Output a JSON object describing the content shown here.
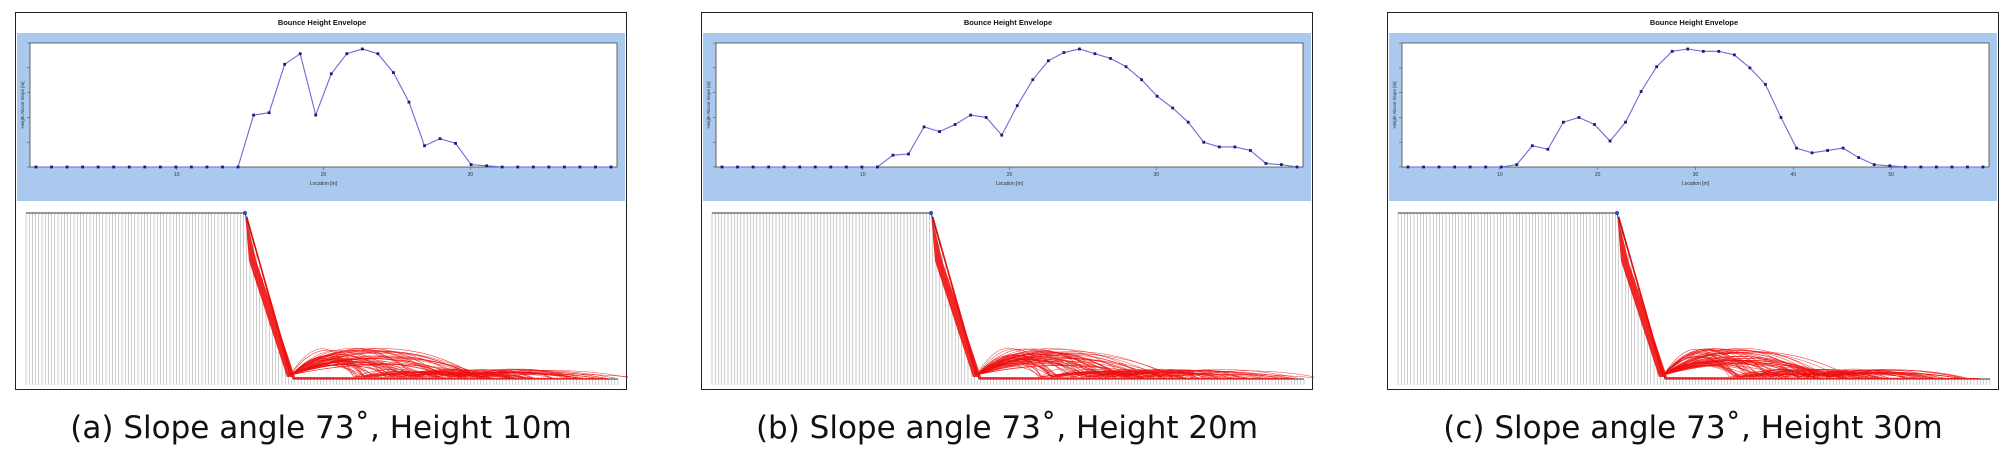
{
  "envelope_title": "Bounce Height Envelope",
  "xlabel": "Location [m]",
  "ylabel": "Height Above Slope [m]",
  "colors": {
    "plot_band": "#a9c9ef",
    "envelope_line": "#6a6ad6",
    "envelope_point": "#1a1a80",
    "trajectory": "#ee1111",
    "slope": "#333333"
  },
  "panels": [
    {
      "caption": "(a) Slope angle 73˚, Height 10m",
      "x_ticks": [
        "10",
        "20",
        "30"
      ],
      "chart_data": {
        "type": "line",
        "title": "Bounce Height Envelope",
        "x": [
          0,
          1,
          2,
          3,
          4,
          5,
          6,
          7,
          8,
          9,
          10,
          11,
          12,
          13,
          14,
          15,
          16,
          17,
          18,
          19,
          20,
          21,
          22,
          23,
          24,
          25,
          26,
          27,
          28,
          29,
          30,
          31,
          32,
          33,
          34,
          35,
          36,
          37
        ],
        "values": [
          0,
          0,
          0,
          0,
          0,
          0,
          0,
          0,
          0,
          0,
          0,
          0,
          0,
          0,
          0.44,
          0.46,
          0.87,
          0.96,
          0.44,
          0.79,
          0.96,
          1.0,
          0.96,
          0.8,
          0.55,
          0.18,
          0.24,
          0.2,
          0.02,
          0.01,
          0,
          0,
          0,
          0,
          0,
          0,
          0,
          0
        ],
        "ylim": [
          0,
          1.05
        ]
      }
    },
    {
      "caption": "(b) Slope angle 73˚, Height 20m",
      "x_ticks": [
        "10",
        "20",
        "30"
      ],
      "chart_data": {
        "type": "line",
        "title": "Bounce Height Envelope",
        "x": [
          0,
          1,
          2,
          3,
          4,
          5,
          6,
          7,
          8,
          9,
          10,
          11,
          12,
          13,
          14,
          15,
          16,
          17,
          18,
          19,
          20,
          21,
          22,
          23,
          24,
          25,
          26,
          27,
          28,
          29,
          30,
          31,
          32,
          33,
          34,
          35,
          36,
          37
        ],
        "values": [
          0,
          0,
          0,
          0,
          0,
          0,
          0,
          0,
          0,
          0,
          0,
          0.1,
          0.11,
          0.34,
          0.3,
          0.36,
          0.44,
          0.42,
          0.27,
          0.52,
          0.74,
          0.9,
          0.97,
          1.0,
          0.96,
          0.92,
          0.85,
          0.74,
          0.6,
          0.5,
          0.38,
          0.21,
          0.17,
          0.17,
          0.14,
          0.03,
          0.02,
          0
        ]
      }
    },
    {
      "caption": "(c) Slope angle 73˚, Height 30m",
      "x_ticks": [
        "10",
        "20",
        "30",
        "40",
        "50"
      ],
      "chart_data": {
        "type": "line",
        "title": "Bounce Height Envelope",
        "x": [
          0,
          1,
          2,
          3,
          4,
          5,
          6,
          7,
          8,
          9,
          10,
          11,
          12,
          13,
          14,
          15,
          16,
          17,
          18,
          19,
          20,
          21,
          22,
          23,
          24,
          25,
          26,
          27,
          28,
          29,
          30,
          31,
          32,
          33,
          34,
          35,
          36,
          37
        ],
        "values": [
          0,
          0,
          0,
          0,
          0,
          0,
          0,
          0.02,
          0.18,
          0.15,
          0.38,
          0.42,
          0.36,
          0.22,
          0.38,
          0.64,
          0.85,
          0.98,
          1.0,
          0.98,
          0.98,
          0.95,
          0.84,
          0.7,
          0.42,
          0.16,
          0.12,
          0.14,
          0.16,
          0.08,
          0.02,
          0.01,
          0,
          0,
          0,
          0,
          0,
          0
        ]
      }
    }
  ]
}
